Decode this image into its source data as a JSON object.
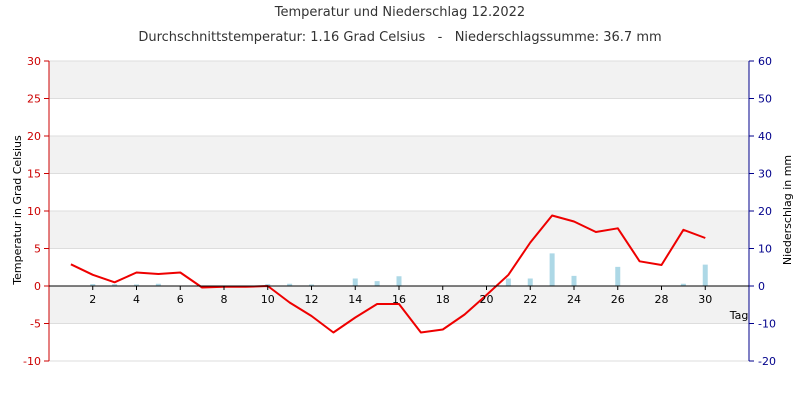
{
  "chart_data": {
    "type": "line",
    "title": "Temperatur und Niederschlag 12.2022",
    "subtitle": "Durchschnittstemperatur: 1.16 Grad Celsius   -   Niederschlagssumme: 36.7 mm",
    "xlabel": "Tag",
    "ylabel": "Temperatur in Grad Celsius",
    "y2label": "Niederschlag in mm",
    "xlim": [
      0,
      32
    ],
    "ylim": [
      -10,
      30
    ],
    "y2lim": [
      -20,
      60
    ],
    "x_ticks": [
      2,
      4,
      6,
      8,
      10,
      12,
      14,
      16,
      18,
      20,
      22,
      24,
      26,
      28,
      30
    ],
    "y_ticks": [
      -10,
      -5,
      0,
      5,
      10,
      15,
      20,
      25,
      30
    ],
    "y2_ticks": [
      -20,
      -10,
      0,
      10,
      20,
      30,
      40,
      50,
      60
    ],
    "grid": true,
    "colors": {
      "temperature": "#ee0000",
      "precipitation": "#add8e6",
      "left_axis": "#cc0000",
      "right_axis": "#00008b",
      "band": "#f2f2f2",
      "grid": "#dddddd"
    },
    "series": [
      {
        "type": "line",
        "axis": "left",
        "x": [
          1,
          2,
          3,
          4,
          5,
          6,
          7,
          8,
          9,
          10,
          11,
          12,
          13,
          14,
          15,
          16,
          17,
          18,
          19,
          20,
          21,
          22,
          23,
          24,
          25,
          26,
          27,
          28,
          29,
          30
        ],
        "values": [
          2.9,
          1.5,
          0.5,
          1.8,
          1.6,
          1.8,
          -0.2,
          -0.1,
          -0.1,
          0.0,
          -2.2,
          -4.0,
          -6.2,
          -4.2,
          -2.4,
          -2.4,
          -6.2,
          -5.8,
          -3.8,
          -1.2,
          1.5,
          5.8,
          9.4,
          8.6,
          7.2,
          7.7,
          3.3,
          2.8,
          7.5,
          6.4
        ]
      },
      {
        "type": "bar",
        "axis": "right",
        "x": [
          2,
          3,
          4,
          5,
          10,
          11,
          12,
          14,
          15,
          16,
          21,
          22,
          23,
          24,
          26,
          29,
          30
        ],
        "values": [
          0.5,
          0.5,
          0.4,
          0.6,
          0.5,
          0.6,
          0.4,
          2.0,
          1.3,
          2.6,
          2.0,
          2.0,
          8.7,
          2.7,
          5.1,
          0.6,
          5.7
        ]
      }
    ]
  }
}
